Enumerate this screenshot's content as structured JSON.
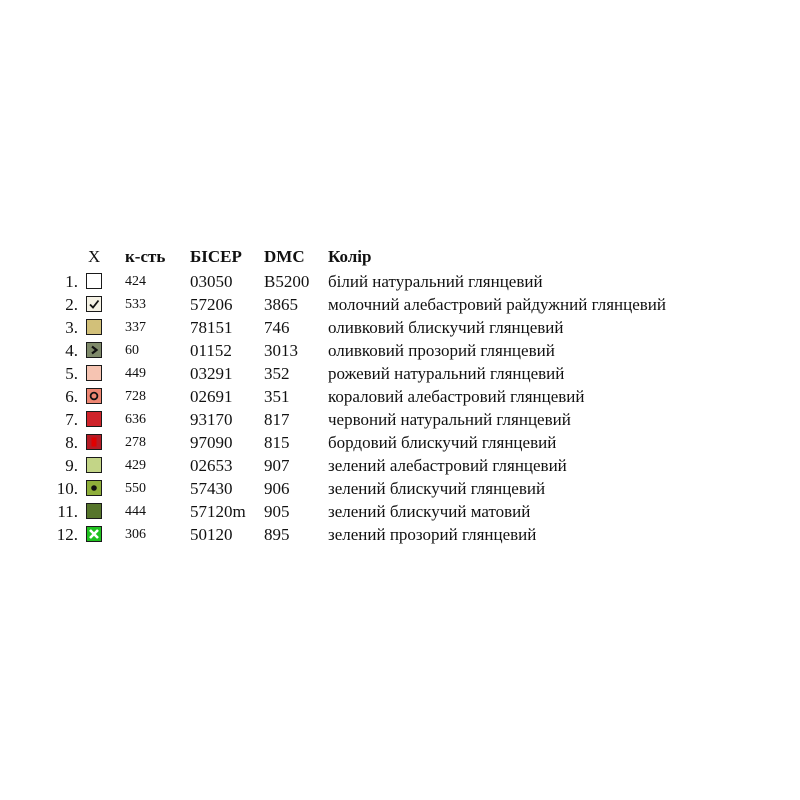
{
  "header": {
    "x": "X",
    "qty": "к-сть",
    "beads": "БІСЕР",
    "dmc": "DMC",
    "color": "Колір"
  },
  "rows": [
    {
      "n": "1.",
      "qty": "424",
      "code": "03050",
      "dmc": "B5200",
      "name": "білий натуральний глянцевий",
      "swatch": "#ffffff",
      "icon": "none"
    },
    {
      "n": "2.",
      "qty": "533",
      "code": "57206",
      "dmc": "3865",
      "name": "молочний алебастровий райдужний глянцевий",
      "swatch": "#f4f1e4",
      "icon": "check-icon"
    },
    {
      "n": "3.",
      "qty": "337",
      "code": "78151",
      "dmc": "746",
      "name": "оливковий блискучий глянцевий",
      "swatch": "#d2c079",
      "icon": "none"
    },
    {
      "n": "4.",
      "qty": "60",
      "code": "01152",
      "dmc": "3013",
      "name": "оливковий прозорий глянцевий",
      "swatch": "#7f8a6a",
      "icon": "chevron-right-icon"
    },
    {
      "n": "5.",
      "qty": "449",
      "code": "03291",
      "dmc": "352",
      "name": "рожевий натуральний глянцевий",
      "swatch": "#f6c4b2",
      "icon": "none"
    },
    {
      "n": "6.",
      "qty": "728",
      "code": "02691",
      "dmc": "351",
      "name": "кораловий алебастровий глянцевий",
      "swatch": "#ee8672",
      "icon": "ring-icon"
    },
    {
      "n": "7.",
      "qty": "636",
      "code": "93170",
      "dmc": "817",
      "name": "червоний натуральний глянцевий",
      "swatch": "#cf232a",
      "icon": "none"
    },
    {
      "n": "8.",
      "qty": "278",
      "code": "97090",
      "dmc": "815",
      "name": "бордовий блискучий глянцевий",
      "swatch": "#b51c26",
      "icon": "bar-icon"
    },
    {
      "n": "9.",
      "qty": "429",
      "code": "02653",
      "dmc": "907",
      "name": "зелений алебастровий глянцевий",
      "swatch": "#c3d587",
      "icon": "none"
    },
    {
      "n": "10.",
      "qty": "550",
      "code": "57430",
      "dmc": "906",
      "name": "зелений блискучий глянцевий",
      "swatch": "#8eae3a",
      "icon": "dot-icon"
    },
    {
      "n": "11.",
      "qty": "444",
      "code": "57120m",
      "dmc": "905",
      "name": "зелений блискучий матовий",
      "swatch": "#56752b",
      "icon": "none"
    },
    {
      "n": "12.",
      "qty": "306",
      "code": "50120",
      "dmc": "895",
      "name": "зелений прозорий глянцевий",
      "swatch": "#2c5a1c",
      "icon": "cross-icon"
    }
  ]
}
